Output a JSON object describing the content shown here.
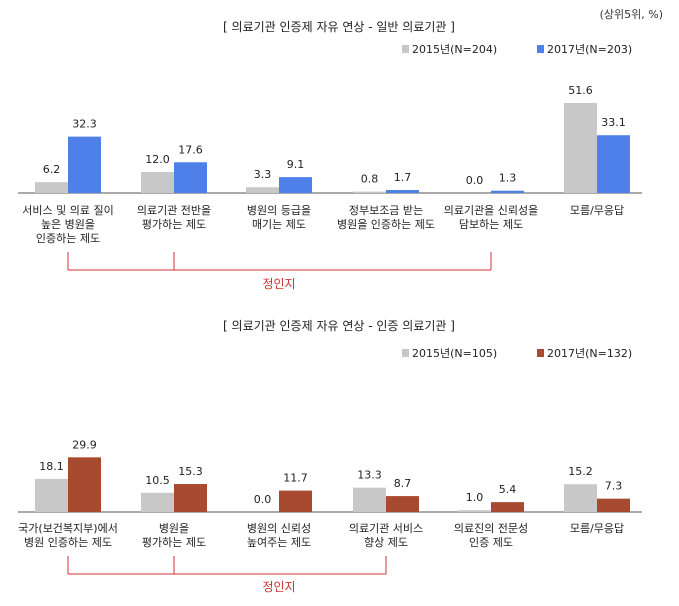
{
  "unit_note": "(상위5위, %)",
  "chart_data": [
    {
      "type": "bar",
      "title": "[ 의료기관 인증제 자유 연상 - 일반 의료기관 ]",
      "categories": [
        [
          "서비스 및 의료 질이",
          "높은 병원을",
          "인증하는 제도"
        ],
        [
          "의료기관 전반을",
          "평가하는 제도"
        ],
        [
          "병원의 등급을",
          "매기는 제도"
        ],
        [
          "정부보조금 받는",
          "병원을 인증하는 제도"
        ],
        [
          "의료기관을 신뢰성을",
          "담보하는 제도"
        ],
        [
          "모름/무응답"
        ]
      ],
      "series": [
        {
          "name": "2015년(N=204)",
          "color": "#c8c8c8",
          "values": [
            6.2,
            12.0,
            3.3,
            0.8,
            0.0,
            51.6
          ]
        },
        {
          "name": "2017년(N=203)",
          "color": "#4f7fe8",
          "values": [
            32.3,
            17.6,
            9.1,
            1.7,
            1.3,
            33.1
          ]
        }
      ],
      "ylim": [
        0,
        55
      ],
      "legend_position": "top-right",
      "bracket": {
        "label": "정인지",
        "from_category": 0,
        "to_category": 4
      }
    },
    {
      "type": "bar",
      "title": "[ 의료기관 인증제 자유 연상 - 인증 의료기관 ]",
      "categories": [
        [
          "국가(보건복지부)에서",
          "병원 인증하는 제도"
        ],
        [
          "병원을",
          "평가하는 제도"
        ],
        [
          "병원의 신뢰성",
          "높여주는 제도"
        ],
        [
          "의료기관 서비스",
          "향상 제도"
        ],
        [
          "의료진의 전문성",
          "인증 제도"
        ],
        [
          "모름/무응답"
        ]
      ],
      "series": [
        {
          "name": "2015년(N=105)",
          "color": "#c8c8c8",
          "values": [
            18.1,
            10.5,
            0.0,
            13.3,
            1.0,
            15.2
          ]
        },
        {
          "name": "2017년(N=132)",
          "color": "#a84a30",
          "values": [
            29.9,
            15.3,
            11.7,
            8.7,
            5.4,
            7.3
          ]
        }
      ],
      "ylim": [
        0,
        35
      ],
      "legend_position": "top-right",
      "bracket": {
        "label": "정인지",
        "from_category": 0,
        "to_category": 3
      }
    }
  ]
}
